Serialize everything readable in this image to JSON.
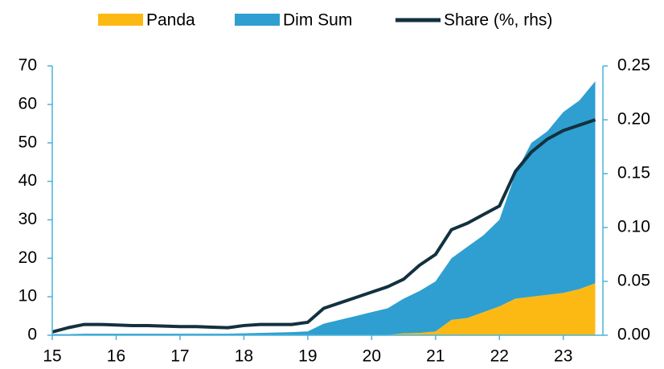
{
  "chart_data": {
    "type": "stacked_area_line",
    "x": [
      15,
      15.25,
      15.5,
      15.75,
      16,
      16.25,
      16.5,
      16.75,
      17,
      17.25,
      17.5,
      17.75,
      18,
      18.25,
      18.5,
      18.75,
      19,
      19.25,
      19.5,
      19.75,
      20,
      20.25,
      20.5,
      20.75,
      21,
      21.25,
      21.5,
      21.75,
      22,
      22.25,
      22.5,
      22.75,
      23,
      23.25,
      23.5
    ],
    "series": [
      {
        "name": "Panda",
        "color": "#fdb913",
        "kind": "area",
        "values": [
          0.1,
          0.1,
          0.1,
          0.1,
          0.1,
          0.1,
          0.1,
          0.1,
          0.1,
          0.1,
          0.1,
          0.1,
          0.1,
          0.1,
          0.1,
          0.1,
          0.1,
          0.1,
          0.1,
          0.1,
          0.1,
          0.1,
          0.5,
          0.6,
          1,
          4,
          4.5,
          6,
          7.5,
          9.5,
          10,
          10.5,
          11,
          12,
          13.5
        ]
      },
      {
        "name": "Dim Sum",
        "color": "#2e9fd0",
        "kind": "area",
        "values": [
          0.2,
          0.2,
          0.3,
          0.3,
          0.3,
          0.3,
          0.3,
          0.3,
          0.3,
          0.3,
          0.3,
          0.3,
          0.4,
          0.5,
          0.6,
          0.7,
          0.9,
          2.9,
          3.9,
          4.9,
          5.9,
          6.9,
          9,
          10.9,
          13,
          16,
          18.5,
          20,
          22.5,
          32.5,
          40,
          42.5,
          47,
          49,
          52.5
        ]
      },
      {
        "name": "Share (%, rhs)",
        "color": "#13313f",
        "kind": "line",
        "axis": "y2",
        "values": [
          0.003,
          0.007,
          0.01,
          0.01,
          0.0095,
          0.009,
          0.009,
          0.0085,
          0.008,
          0.008,
          0.0075,
          0.007,
          0.009,
          0.01,
          0.01,
          0.01,
          0.012,
          0.025,
          0.03,
          0.035,
          0.04,
          0.045,
          0.052,
          0.065,
          0.075,
          0.098,
          0.104,
          0.112,
          0.12,
          0.152,
          0.17,
          0.182,
          0.19,
          0.195,
          0.2
        ]
      }
    ],
    "xlim": [
      15,
      23.62
    ],
    "xticks": [
      15,
      16,
      17,
      18,
      19,
      20,
      21,
      22,
      23
    ],
    "ylim": [
      0,
      70
    ],
    "yticks": [
      0,
      10,
      20,
      30,
      40,
      50,
      60,
      70
    ],
    "y2lim": [
      0,
      0.25
    ],
    "y2ticks": [
      {
        "value": 0,
        "label": "0.00"
      },
      {
        "value": 0.05,
        "label": "0.05"
      },
      {
        "value": 0.1,
        "label": "0.10"
      },
      {
        "value": 0.15,
        "label": "0.15"
      },
      {
        "value": 0.2,
        "label": "0.20"
      },
      {
        "value": 0.25,
        "label": "0.25"
      }
    ],
    "axis_color": "#4ab3d9",
    "legend": "top"
  }
}
